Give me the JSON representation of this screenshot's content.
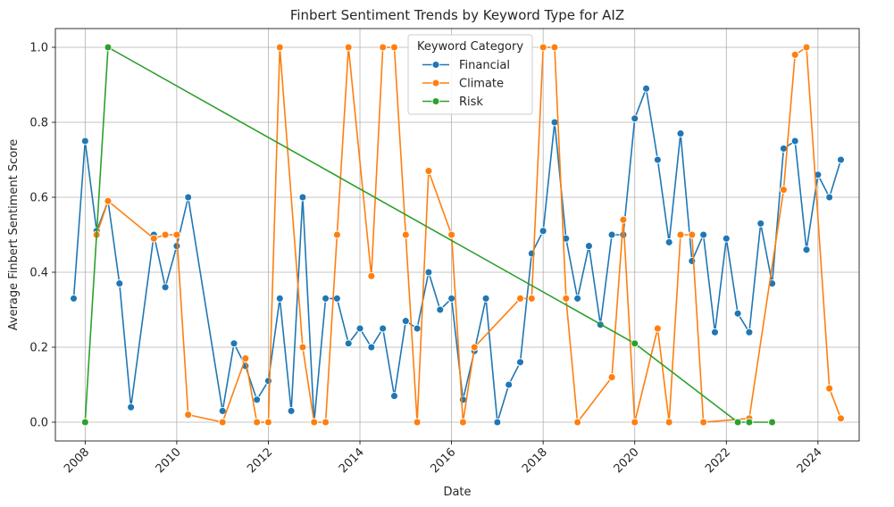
{
  "chart_data": {
    "type": "line",
    "title": "Finbert Sentiment Trends by Keyword Type for AIZ",
    "xlabel": "Date",
    "ylabel": "Average Finbert Sentiment Score",
    "x_range": [
      2007.35,
      2024.9
    ],
    "ylim": [
      -0.05,
      1.05
    ],
    "x_ticks": [
      2008,
      2010,
      2012,
      2014,
      2016,
      2018,
      2020,
      2022,
      2024
    ],
    "y_ticks": [
      "0.0",
      "0.2",
      "0.4",
      "0.6",
      "0.8",
      "1.0"
    ],
    "grid": true,
    "legend": {
      "title": "Keyword Category",
      "placement": "top-center"
    },
    "series": [
      {
        "name": "Financial",
        "color": "#1f77b4",
        "x": [
          2007.75,
          2008.0,
          2008.25,
          2008.5,
          2008.75,
          2009.0,
          2009.5,
          2009.75,
          2010.0,
          2010.25,
          2011.0,
          2011.25,
          2011.5,
          2011.75,
          2012.0,
          2012.25,
          2012.5,
          2012.75,
          2013.0,
          2013.25,
          2013.5,
          2013.75,
          2014.0,
          2014.25,
          2014.5,
          2014.75,
          2015.0,
          2015.25,
          2015.5,
          2015.75,
          2016.0,
          2016.25,
          2016.5,
          2016.75,
          2017.0,
          2017.25,
          2017.5,
          2017.75,
          2018.0,
          2018.25,
          2018.5,
          2018.75,
          2019.0,
          2019.25,
          2019.5,
          2019.75,
          2020.0,
          2020.25,
          2020.5,
          2020.75,
          2021.0,
          2021.25,
          2021.5,
          2021.75,
          2022.0,
          2022.25,
          2022.5,
          2022.75,
          2023.0,
          2023.25,
          2023.5,
          2023.75,
          2024.0,
          2024.25,
          2024.5
        ],
        "values": [
          0.33,
          0.75,
          0.51,
          0.59,
          0.37,
          0.04,
          0.5,
          0.36,
          0.47,
          0.6,
          0.03,
          0.21,
          0.15,
          0.06,
          0.11,
          0.33,
          0.03,
          0.6,
          0.0,
          0.33,
          0.33,
          0.21,
          0.25,
          0.2,
          0.25,
          0.07,
          0.27,
          0.25,
          0.4,
          0.3,
          0.33,
          0.06,
          0.19,
          0.33,
          0.0,
          0.1,
          0.16,
          0.45,
          0.51,
          0.8,
          0.49,
          0.33,
          0.47,
          0.26,
          0.5,
          0.5,
          0.81,
          0.89,
          0.7,
          0.48,
          0.77,
          0.43,
          0.5,
          0.24,
          0.49,
          0.29,
          0.24,
          0.53,
          0.37,
          0.73,
          0.75,
          0.46,
          0.66,
          0.6,
          0.7
        ]
      },
      {
        "name": "Climate",
        "color": "#ff7f0e",
        "x": [
          2008.25,
          2008.5,
          2009.5,
          2009.75,
          2010.0,
          2010.25,
          2011.0,
          2011.5,
          2011.75,
          2012.0,
          2012.25,
          2012.75,
          2013.0,
          2013.25,
          2013.5,
          2013.75,
          2014.25,
          2014.5,
          2014.75,
          2015.0,
          2015.25,
          2015.5,
          2016.0,
          2016.25,
          2016.5,
          2017.5,
          2017.75,
          2018.0,
          2018.25,
          2018.5,
          2018.75,
          2019.5,
          2019.75,
          2020.0,
          2020.5,
          2020.75,
          2021.0,
          2021.25,
          2021.5,
          2022.5,
          2023.25,
          2023.5,
          2023.75,
          2024.25,
          2024.5
        ],
        "values": [
          0.5,
          0.59,
          0.49,
          0.5,
          0.5,
          0.02,
          0.0,
          0.17,
          0.0,
          0.0,
          1.0,
          0.2,
          0.0,
          0.0,
          0.5,
          1.0,
          0.39,
          1.0,
          1.0,
          0.5,
          0.0,
          0.67,
          0.5,
          0.0,
          0.2,
          0.33,
          0.33,
          1.0,
          1.0,
          0.33,
          0.0,
          0.12,
          0.54,
          0.0,
          0.25,
          0.0,
          0.5,
          0.5,
          0.0,
          0.01,
          0.62,
          0.98,
          1.0,
          0.09,
          0.01
        ]
      },
      {
        "name": "Risk",
        "color": "#2ca02c",
        "x": [
          2008.0,
          2008.5,
          2020.0,
          2022.25,
          2022.5,
          2023.0
        ],
        "values": [
          0.0,
          1.0,
          0.21,
          0.0,
          0.0,
          0.0
        ]
      }
    ]
  }
}
